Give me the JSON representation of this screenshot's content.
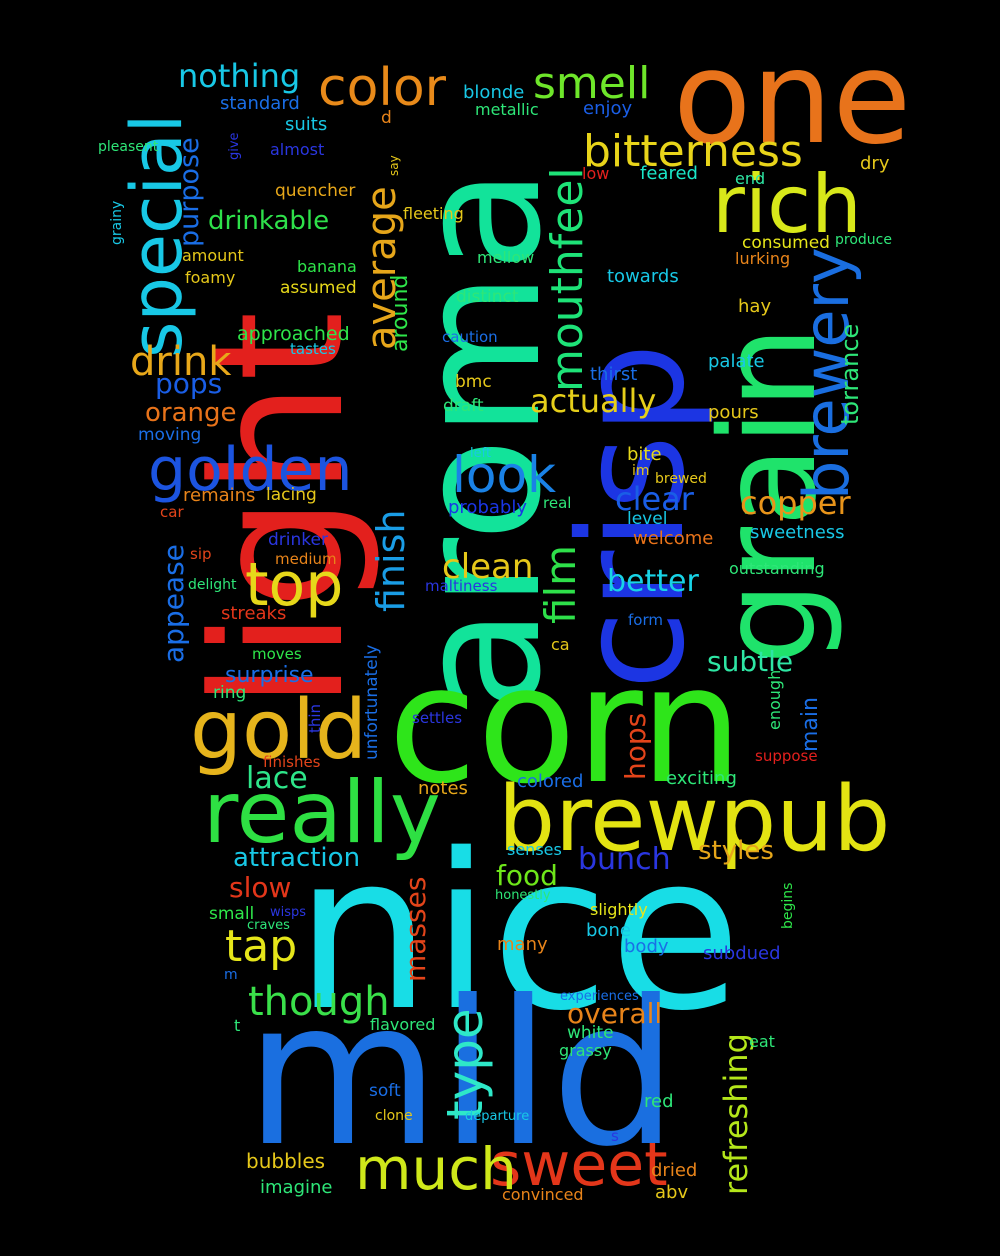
{
  "words": [
    {
      "text": "nice",
      "color": "#18dde6"
    },
    {
      "text": "mild",
      "color": "#1a6fe0"
    },
    {
      "text": "aroma",
      "color": "#12e39a"
    },
    {
      "text": "light",
      "color": "#e3201d"
    },
    {
      "text": "corn",
      "color": "#2ee51a"
    },
    {
      "text": "crisp",
      "color": "#1c35e3"
    },
    {
      "text": "grain",
      "color": "#1fe36b"
    },
    {
      "text": "one",
      "color": "#e8731b"
    },
    {
      "text": "brewpub",
      "color": "#e3e312"
    },
    {
      "text": "really",
      "color": "#2ee043"
    },
    {
      "text": "rich",
      "color": "#d8e81a"
    },
    {
      "text": "gold",
      "color": "#e6b41c"
    },
    {
      "text": "sweet",
      "color": "#e3361a"
    },
    {
      "text": "much",
      "color": "#cfe81a"
    },
    {
      "text": "special",
      "color": "#18c8e6"
    },
    {
      "text": "brewery",
      "color": "#1a6ee0"
    },
    {
      "text": "golden",
      "color": "#1c54e0"
    },
    {
      "text": "top",
      "color": "#e6d81a"
    },
    {
      "text": "color",
      "color": "#e88a1a"
    },
    {
      "text": "bitterness",
      "color": "#e8d41a"
    },
    {
      "text": "mouthfeel",
      "color": "#1ee378"
    },
    {
      "text": "film",
      "color": "#2ee04a"
    },
    {
      "text": "look",
      "color": "#1a82e6"
    },
    {
      "text": "smell",
      "color": "#6ee62a"
    },
    {
      "text": "average",
      "color": "#e6a61a"
    },
    {
      "text": "though",
      "color": "#3ae04a"
    },
    {
      "text": "type",
      "color": "#2ee8c8"
    },
    {
      "text": "tap",
      "color": "#e6e61a"
    },
    {
      "text": "finish",
      "color": "#1a9de6"
    },
    {
      "text": "drink",
      "color": "#e8a81a"
    },
    {
      "text": "clean",
      "color": "#e6c81a"
    },
    {
      "text": "copper",
      "color": "#e8941a"
    },
    {
      "text": "clear",
      "color": "#1a5ee6"
    },
    {
      "text": "nothing",
      "color": "#18c8e6"
    },
    {
      "text": "actually",
      "color": "#e6cf1a"
    },
    {
      "text": "better",
      "color": "#18d3e6"
    },
    {
      "text": "subtle",
      "color": "#2ee6a4"
    },
    {
      "text": "masses",
      "color": "#e3441a"
    },
    {
      "text": "refreshing",
      "color": "#b4e61a"
    },
    {
      "text": "overall",
      "color": "#e8841a"
    },
    {
      "text": "bunch",
      "color": "#2a36e0"
    },
    {
      "text": "food",
      "color": "#6ee61a"
    },
    {
      "text": "lace",
      "color": "#2ee68a"
    },
    {
      "text": "drinkable",
      "color": "#2ee04a"
    },
    {
      "text": "purpose",
      "color": "#1a6ee6"
    },
    {
      "text": "pops",
      "color": "#1a5ee6"
    },
    {
      "text": "appease",
      "color": "#1a6ee6"
    },
    {
      "text": "orange",
      "color": "#e8731a"
    },
    {
      "text": "torrance",
      "color": "#2ee678"
    },
    {
      "text": "attraction",
      "color": "#18c8e6"
    },
    {
      "text": "slow",
      "color": "#e3361a"
    },
    {
      "text": "styles",
      "color": "#e6a61a"
    },
    {
      "text": "hops",
      "color": "#e3441a"
    },
    {
      "text": "surprise",
      "color": "#1a6ee6"
    },
    {
      "text": "around",
      "color": "#2ee64a"
    },
    {
      "text": "main",
      "color": "#1a6ee6"
    },
    {
      "text": "blonde",
      "color": "#18c8e6"
    },
    {
      "text": "standard",
      "color": "#1a6ee6"
    },
    {
      "text": "suits",
      "color": "#18c8e6"
    },
    {
      "text": "almost",
      "color": "#2a36e0"
    },
    {
      "text": "metallic",
      "color": "#2ee678"
    },
    {
      "text": "enjoy",
      "color": "#1a5ee6"
    },
    {
      "text": "feared",
      "color": "#1ae6c8"
    },
    {
      "text": "dry",
      "color": "#e6c81a"
    },
    {
      "text": "quencher",
      "color": "#e8a81a"
    },
    {
      "text": "low",
      "color": "#e3201d"
    },
    {
      "text": "end",
      "color": "#2ee6a4"
    },
    {
      "text": "consumed",
      "color": "#e6e61a"
    },
    {
      "text": "produce",
      "color": "#2ee678"
    },
    {
      "text": "lurking",
      "color": "#e8841a"
    },
    {
      "text": "fleeting",
      "color": "#e6c81a"
    },
    {
      "text": "mellow",
      "color": "#2ee678"
    },
    {
      "text": "banana",
      "color": "#2ee64a"
    },
    {
      "text": "foamy",
      "color": "#e6c81a"
    },
    {
      "text": "amount",
      "color": "#e6c81a"
    },
    {
      "text": "assumed",
      "color": "#e6d81a"
    },
    {
      "text": "distinct",
      "color": "#2ee678"
    },
    {
      "text": "approached",
      "color": "#2ee64a"
    },
    {
      "text": "tastes",
      "color": "#18c8e6"
    },
    {
      "text": "caution",
      "color": "#1a6ee6"
    },
    {
      "text": "towards",
      "color": "#18c8e6"
    },
    {
      "text": "hay",
      "color": "#e6c81a"
    },
    {
      "text": "palate",
      "color": "#18c8e6"
    },
    {
      "text": "thirst",
      "color": "#1a6ee6"
    },
    {
      "text": "bmc",
      "color": "#e6c81a"
    },
    {
      "text": "draft",
      "color": "#2ee678"
    },
    {
      "text": "pours",
      "color": "#e6c81a"
    },
    {
      "text": "moving",
      "color": "#1a6ee6"
    },
    {
      "text": "left",
      "color": "#18c8e6"
    },
    {
      "text": "bite",
      "color": "#e6d81a"
    },
    {
      "text": "im",
      "color": "#e6c81a"
    },
    {
      "text": "brewed",
      "color": "#e6c81a"
    },
    {
      "text": "remains",
      "color": "#e8841a"
    },
    {
      "text": "lacing",
      "color": "#e6c81a"
    },
    {
      "text": "probably",
      "color": "#1a36e6"
    },
    {
      "text": "real",
      "color": "#2ee678"
    },
    {
      "text": "level",
      "color": "#18c8e6"
    },
    {
      "text": "sweetness",
      "color": "#18c8e6"
    },
    {
      "text": "car",
      "color": "#e3441a"
    },
    {
      "text": "drinker",
      "color": "#2a36e0"
    },
    {
      "text": "welcome",
      "color": "#e8731a"
    },
    {
      "text": "sip",
      "color": "#e3441a"
    },
    {
      "text": "medium",
      "color": "#e8841a"
    },
    {
      "text": "delight",
      "color": "#2ee678"
    },
    {
      "text": "maltiness",
      "color": "#2a36e0"
    },
    {
      "text": "outstanding",
      "color": "#2ee678"
    },
    {
      "text": "streaks",
      "color": "#e3361a"
    },
    {
      "text": "form",
      "color": "#1a6ee6"
    },
    {
      "text": "ca",
      "color": "#e6c81a"
    },
    {
      "text": "moves",
      "color": "#2ee64a"
    },
    {
      "text": "ring",
      "color": "#2ee678"
    },
    {
      "text": "unfortunately",
      "color": "#1a6ee6"
    },
    {
      "text": "enough",
      "color": "#2ee678"
    },
    {
      "text": "thin",
      "color": "#2a36e0"
    },
    {
      "text": "settles",
      "color": "#2a36e0"
    },
    {
      "text": "finishes",
      "color": "#e3441a"
    },
    {
      "text": "suppose",
      "color": "#e3201d"
    },
    {
      "text": "notes",
      "color": "#e8a81a"
    },
    {
      "text": "colored",
      "color": "#1a6ee6"
    },
    {
      "text": "exciting",
      "color": "#2ee678"
    },
    {
      "text": "senses",
      "color": "#18c8e6"
    },
    {
      "text": "honestly",
      "color": "#2ee678"
    },
    {
      "text": "begins",
      "color": "#2ee64a"
    },
    {
      "text": "small",
      "color": "#2ee64a"
    },
    {
      "text": "wisps",
      "color": "#2a36e0"
    },
    {
      "text": "craves",
      "color": "#2ee678"
    },
    {
      "text": "slightly",
      "color": "#e6e61a"
    },
    {
      "text": "bone",
      "color": "#18c8e6"
    },
    {
      "text": "body",
      "color": "#1a6ee6"
    },
    {
      "text": "subdued",
      "color": "#2a36e0"
    },
    {
      "text": "many",
      "color": "#e8841a"
    },
    {
      "text": "m",
      "color": "#1a6ee6"
    },
    {
      "text": "experiences",
      "color": "#1a6ee6"
    },
    {
      "text": "t",
      "color": "#2ee678"
    },
    {
      "text": "flavored",
      "color": "#2ee678"
    },
    {
      "text": "white",
      "color": "#2ee678"
    },
    {
      "text": "grassy",
      "color": "#2ee678"
    },
    {
      "text": "eat",
      "color": "#2ee678"
    },
    {
      "text": "soft",
      "color": "#1a6ee6"
    },
    {
      "text": "clone",
      "color": "#e6c81a"
    },
    {
      "text": "departure",
      "color": "#18c8e6"
    },
    {
      "text": "red",
      "color": "#2ee678"
    },
    {
      "text": "s",
      "color": "#2a36e0"
    },
    {
      "text": "bubbles",
      "color": "#e6c81a"
    },
    {
      "text": "imagine",
      "color": "#2ee678"
    },
    {
      "text": "convinced",
      "color": "#e8841a"
    },
    {
      "text": "dried",
      "color": "#e8841a"
    },
    {
      "text": "abv",
      "color": "#e6c81a"
    },
    {
      "text": "d",
      "color": "#e8841a"
    },
    {
      "text": "give",
      "color": "#2a36e0"
    },
    {
      "text": "say",
      "color": "#e6c81a"
    },
    {
      "text": "pleasent",
      "color": "#2ee678"
    },
    {
      "text": "grainy",
      "color": "#18c8e6"
    }
  ]
}
